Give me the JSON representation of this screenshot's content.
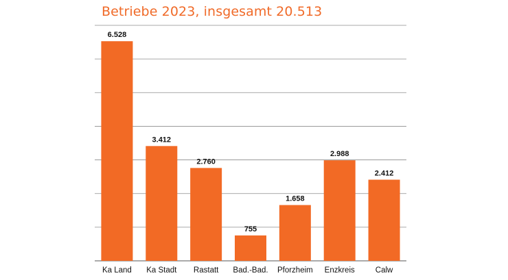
{
  "chart_data": {
    "type": "bar",
    "title": "Betriebe 2023, insgesamt 20.513",
    "categories": [
      "Ka Land",
      "Ka Stadt",
      "Rastatt",
      "Bad.-Bad.",
      "Pforzheim",
      "Enzkreis",
      "Calw"
    ],
    "values": [
      6528,
      3412,
      2760,
      755,
      1658,
      2988,
      2412
    ],
    "value_labels": [
      "6.528",
      "3.412",
      "2.760",
      "755",
      "1.658",
      "2.988",
      "2.412"
    ],
    "xlabel": "",
    "ylabel": "",
    "ylim": [
      0,
      7000
    ],
    "grid": true,
    "legend": "none",
    "colors": {
      "bar": "#f26a25",
      "title": "#f06a28",
      "grid": "#8c8c8c"
    }
  }
}
